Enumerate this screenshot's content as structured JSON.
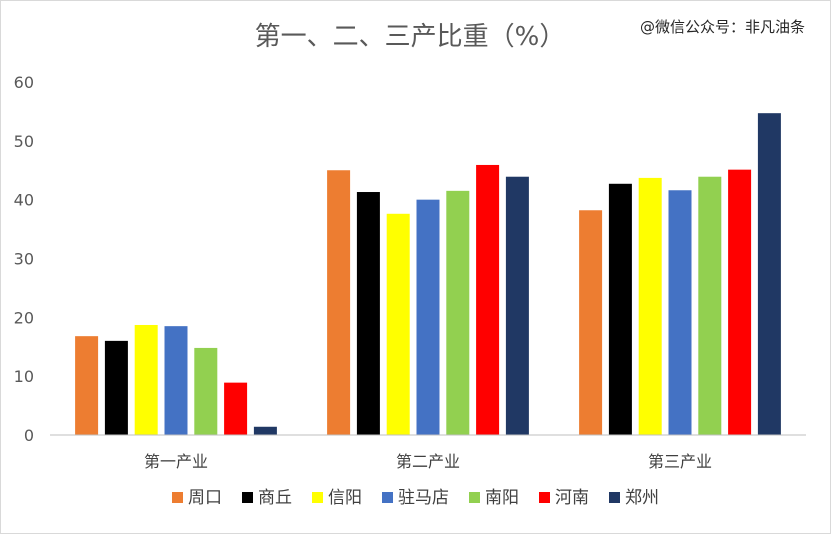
{
  "chart_data": {
    "type": "bar",
    "title": "第一、二、三产比重（%）",
    "watermark": "@微信公众号：非凡油条",
    "categories": [
      "第一产业",
      "第二产业",
      "第三产业"
    ],
    "ylim": [
      0,
      60
    ],
    "yticks": [
      0,
      10,
      20,
      30,
      40,
      50,
      60
    ],
    "grid": false,
    "legend_position": "bottom",
    "series": [
      {
        "name": "周口",
        "color": "#ed7d31",
        "values": [
          16.8,
          45.0,
          38.2
        ]
      },
      {
        "name": "商丘",
        "color": "#000000",
        "values": [
          16.0,
          41.3,
          42.7
        ]
      },
      {
        "name": "信阳",
        "color": "#ffff00",
        "values": [
          18.7,
          37.6,
          43.7
        ]
      },
      {
        "name": "驻马店",
        "color": "#4472c4",
        "values": [
          18.5,
          40.0,
          41.6
        ]
      },
      {
        "name": "南阳",
        "color": "#92d050",
        "values": [
          14.8,
          41.5,
          43.9
        ]
      },
      {
        "name": "河南",
        "color": "#ff0000",
        "values": [
          8.9,
          45.9,
          45.1
        ]
      },
      {
        "name": "郑州",
        "color": "#203864",
        "values": [
          1.4,
          43.9,
          54.7
        ]
      }
    ]
  }
}
